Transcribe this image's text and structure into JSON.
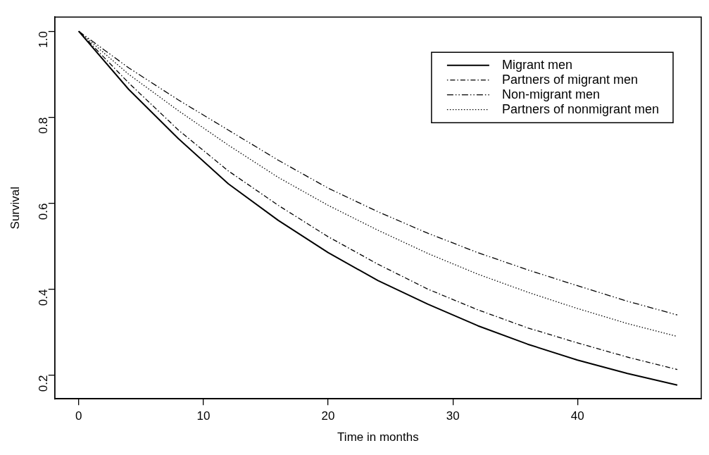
{
  "chart_data": {
    "type": "line",
    "xlabel": "Time in months",
    "ylabel": "Survival",
    "x": [
      0,
      4,
      8,
      12,
      16,
      20,
      24,
      28,
      32,
      36,
      40,
      44,
      48
    ],
    "xlim": [
      -1.92,
      49.92
    ],
    "xticks": [
      0,
      10,
      20,
      30,
      40
    ],
    "ylim": [
      0.145,
      1.033
    ],
    "yticks": [
      0.2,
      0.4,
      0.6,
      0.8,
      {
        "value": 1,
        "label": "1.0"
      }
    ],
    "grid": false,
    "legend": "top right",
    "marker": "none",
    "series": [
      {
        "name": "Migrant men",
        "color": "#000000",
        "line_style": "solid",
        "values": [
          1,
          0.865,
          0.75,
          0.645,
          0.56,
          0.485,
          0.42,
          0.365,
          0.315,
          0.272,
          0.235,
          0.204,
          0.177
        ]
      },
      {
        "name": "Partners of migrant men",
        "color": "#000000",
        "line_style": "dashdot",
        "values": [
          1,
          0.88,
          0.77,
          0.675,
          0.595,
          0.522,
          0.458,
          0.4,
          0.352,
          0.31,
          0.275,
          0.242,
          0.213
        ]
      },
      {
        "name": "Non-migrant men",
        "color": "#000000",
        "line_style": "longdashdot",
        "values": [
          1,
          0.915,
          0.84,
          0.77,
          0.7,
          0.635,
          0.58,
          0.53,
          0.485,
          0.445,
          0.408,
          0.372,
          0.34
        ]
      },
      {
        "name": "Partners of nonmigrant men",
        "color": "#000000",
        "line_style": "dotted",
        "values": [
          1,
          0.9,
          0.815,
          0.735,
          0.66,
          0.595,
          0.537,
          0.483,
          0.435,
          0.393,
          0.355,
          0.32,
          0.29
        ]
      }
    ]
  }
}
